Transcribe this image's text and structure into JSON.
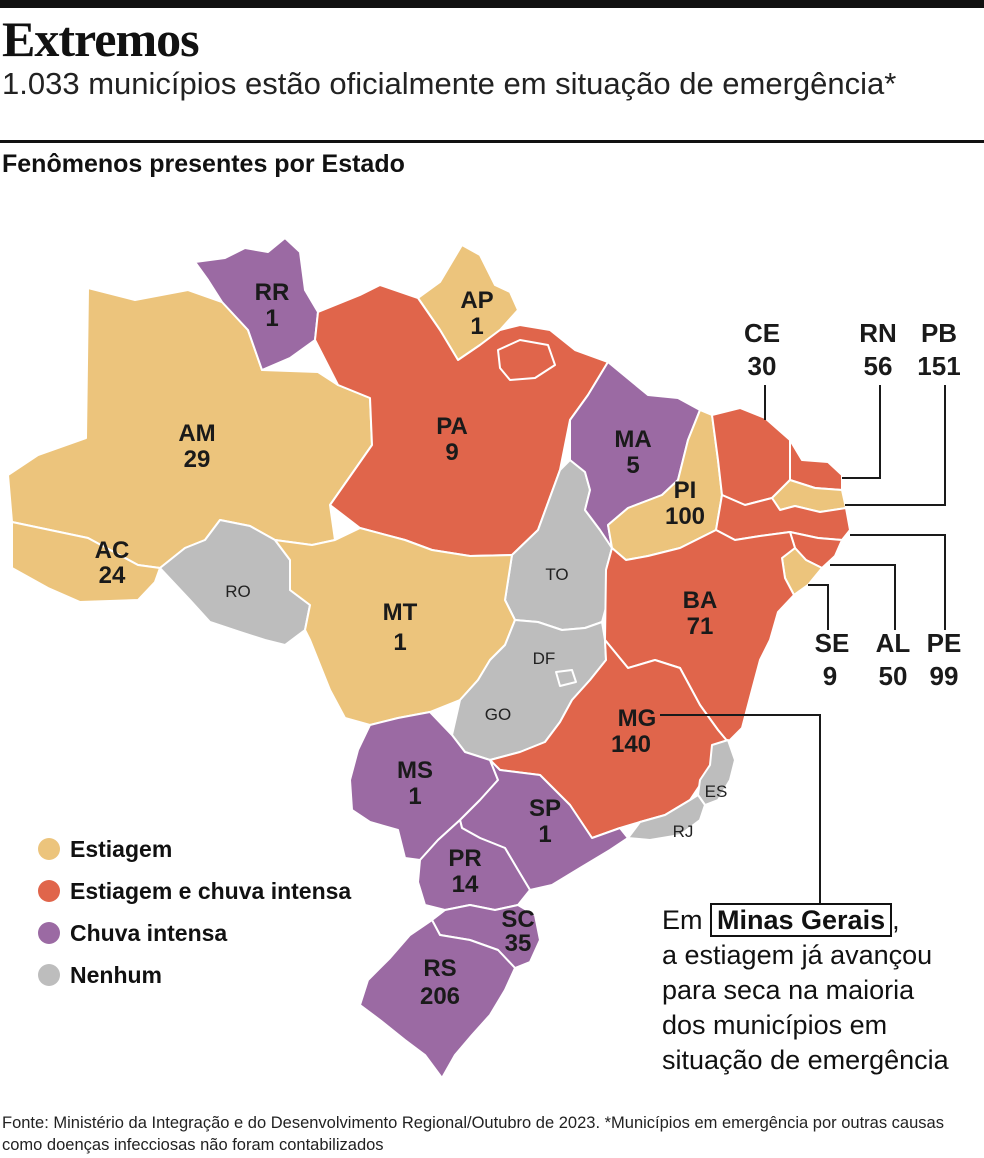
{
  "title": "Extremos",
  "subtitle": "1.033 municípios estão oficialmente em situação de emergência*",
  "section_title": "Fenômenos presentes por Estado",
  "colors": {
    "estiagem": "#ecc47c",
    "estiagem_chuva": "#e0654b",
    "chuva": "#9b6aa3",
    "nenhum": "#bdbdbd",
    "border": "#ffffff"
  },
  "legend": [
    {
      "key": "estiagem",
      "label": "Estiagem"
    },
    {
      "key": "estiagem_chuva",
      "label": "Estiagem e chuva intensa"
    },
    {
      "key": "chuva",
      "label": "Chuva intensa"
    },
    {
      "key": "nenhum",
      "label": "Nenhum"
    }
  ],
  "states": {
    "RR": {
      "name": "RR",
      "count": "1",
      "category": "chuva"
    },
    "AP": {
      "name": "AP",
      "count": "1",
      "category": "estiagem"
    },
    "AM": {
      "name": "AM",
      "count": "29",
      "category": "estiagem"
    },
    "PA": {
      "name": "PA",
      "count": "9",
      "category": "estiagem_chuva"
    },
    "MA": {
      "name": "MA",
      "count": "5",
      "category": "chuva"
    },
    "CE": {
      "name": "CE",
      "count": "30",
      "category": "estiagem_chuva"
    },
    "RN": {
      "name": "RN",
      "count": "56",
      "category": "estiagem_chuva"
    },
    "PB": {
      "name": "PB",
      "count": "151",
      "category": "estiagem"
    },
    "PI": {
      "name": "PI",
      "count": "100",
      "category": "estiagem"
    },
    "PE": {
      "name": "PE",
      "count": "99",
      "category": "estiagem_chuva"
    },
    "AL": {
      "name": "AL",
      "count": "50",
      "category": "estiagem_chuva"
    },
    "SE": {
      "name": "SE",
      "count": "9",
      "category": "estiagem"
    },
    "AC": {
      "name": "AC",
      "count": "24",
      "category": "estiagem"
    },
    "RO": {
      "name": "RO",
      "count": "",
      "category": "nenhum"
    },
    "MT": {
      "name": "MT",
      "count": "1",
      "category": "estiagem"
    },
    "TO": {
      "name": "TO",
      "count": "",
      "category": "nenhum"
    },
    "BA": {
      "name": "BA",
      "count": "71",
      "category": "estiagem_chuva"
    },
    "DF": {
      "name": "DF",
      "count": "",
      "category": "nenhum"
    },
    "GO": {
      "name": "GO",
      "count": "",
      "category": "nenhum"
    },
    "MG": {
      "name": "MG",
      "count": "140",
      "category": "estiagem_chuva"
    },
    "ES": {
      "name": "ES",
      "count": "",
      "category": "nenhum"
    },
    "RJ": {
      "name": "RJ",
      "count": "",
      "category": "nenhum"
    },
    "MS": {
      "name": "MS",
      "count": "1",
      "category": "chuva"
    },
    "SP": {
      "name": "SP",
      "count": "1",
      "category": "chuva"
    },
    "PR": {
      "name": "PR",
      "count": "14",
      "category": "chuva"
    },
    "SC": {
      "name": "SC",
      "count": "35",
      "category": "chuva"
    },
    "RS": {
      "name": "RS",
      "count": "206",
      "category": "chuva"
    }
  },
  "note": {
    "prefix": "Em",
    "highlight": "Minas Gerais",
    "suffix": ",",
    "line2": "a estiagem já avançou",
    "line3": "para seca na maioria",
    "line4": "dos municípios em",
    "line5": "situação de emergência"
  },
  "footer": "Fonte: Ministério da Integração e do Desenvolvimento Regional/Outubro de 2023. *Municípios em emergência por outras causas como doenças infecciosas não foram contabilizados"
}
